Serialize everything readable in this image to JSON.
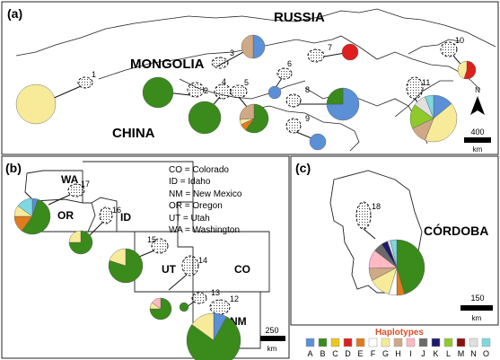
{
  "panels": {
    "a": {
      "label": "(a)",
      "region_labels": [
        "RUSSIA",
        "MONGOLIA",
        "CHINA"
      ],
      "scale": {
        "value": "400",
        "unit": "km"
      },
      "north": "N",
      "sites": [
        {
          "id": "1",
          "pie": [
            0,
            0,
            0,
            0,
            0,
            0,
            1,
            0,
            0,
            0,
            0,
            0,
            0,
            0,
            0
          ]
        },
        {
          "id": "2",
          "pie": [
            0,
            1,
            0,
            0,
            0,
            0,
            0,
            0,
            0,
            0,
            0,
            0,
            0,
            0,
            0
          ]
        },
        {
          "id": "3",
          "pie": [
            0.5,
            0,
            0,
            0,
            0,
            0,
            0,
            0.5,
            0,
            0,
            0,
            0,
            0,
            0,
            0
          ]
        },
        {
          "id": "4",
          "pie": [
            0,
            1,
            0,
            0,
            0,
            0,
            0,
            0,
            0,
            0,
            0,
            0,
            0,
            0,
            0
          ]
        },
        {
          "id": "5",
          "pie": [
            0,
            0.6,
            0,
            0,
            0.08,
            0,
            0.06,
            0.26,
            0,
            0,
            0,
            0,
            0,
            0,
            0
          ]
        },
        {
          "id": "6",
          "pie": [
            1,
            0,
            0,
            0,
            0,
            0,
            0,
            0,
            0,
            0,
            0,
            0,
            0,
            0,
            0
          ]
        },
        {
          "id": "7",
          "pie": [
            0,
            0,
            0,
            1,
            0,
            0,
            0,
            0,
            0,
            0,
            0,
            0,
            0,
            0,
            0
          ]
        },
        {
          "id": "8",
          "pie": [
            0.75,
            0.25,
            0,
            0,
            0,
            0,
            0,
            0,
            0,
            0,
            0,
            0,
            0,
            0,
            0
          ]
        },
        {
          "id": "9",
          "pie": [
            1,
            0,
            0,
            0,
            0,
            0,
            0,
            0,
            0,
            0,
            0,
            0,
            0,
            0,
            0
          ]
        },
        {
          "id": "10",
          "pie": [
            0,
            0,
            0,
            0.55,
            0,
            0,
            0.45,
            0,
            0,
            0,
            0,
            0,
            0,
            0,
            0
          ]
        },
        {
          "id": "11",
          "pie": [
            0.14,
            0,
            0,
            0,
            0,
            0,
            0.42,
            0.12,
            0,
            0,
            0,
            0.17,
            0,
            0.09,
            0.06
          ]
        }
      ]
    },
    "b": {
      "label": "(b)",
      "state_labels": [
        "WA",
        "OR",
        "ID",
        "UT",
        "CO",
        "NM"
      ],
      "legend": [
        "CO = Colorado",
        "ID = Idaho",
        "NM = New Mexico",
        "OR = Oregon",
        "UT = Utah",
        "WA = Washington"
      ],
      "scale": {
        "value": "250",
        "unit": "km"
      },
      "sites": [
        {
          "id": "17",
          "pie": [
            0.05,
            0.55,
            0,
            0,
            0.15,
            0,
            0.1,
            0,
            0,
            0,
            0,
            0,
            0,
            0,
            0.15
          ]
        },
        {
          "id": "16",
          "pie": [
            0,
            0.75,
            0,
            0,
            0,
            0,
            0.25,
            0,
            0,
            0,
            0,
            0,
            0,
            0,
            0
          ]
        },
        {
          "id": "15",
          "pie": [
            0,
            0.8,
            0,
            0,
            0,
            0,
            0.2,
            0,
            0,
            0,
            0,
            0,
            0,
            0,
            0
          ]
        },
        {
          "id": "14",
          "pie": [
            0,
            1,
            0,
            0,
            0,
            0,
            0,
            0,
            0,
            0,
            0,
            0,
            0,
            0,
            0
          ]
        },
        {
          "id": "13",
          "pie": [
            0,
            0.75,
            0,
            0,
            0,
            0,
            0.1,
            0,
            0.15,
            0,
            0,
            0,
            0,
            0,
            0
          ]
        },
        {
          "id": "12",
          "pie": [
            0.08,
            0.77,
            0,
            0,
            0,
            0,
            0.15,
            0,
            0,
            0,
            0,
            0,
            0,
            0,
            0
          ]
        }
      ]
    },
    "c": {
      "label": "(c)",
      "region_label": "CÓRDOBA",
      "scale": {
        "value": "150",
        "unit": "km"
      },
      "sites": [
        {
          "id": "18",
          "pie": [
            0,
            0.5,
            0,
            0,
            0.05,
            0.05,
            0.14,
            0.08,
            0.12,
            0.06,
            0.04,
            0,
            0,
            0.02,
            0.04
          ]
        }
      ]
    }
  },
  "haplotypes": {
    "title": "Haplotypes",
    "letters": [
      "A",
      "B",
      "C",
      "D",
      "E",
      "F",
      "G",
      "H",
      "I",
      "J",
      "K",
      "L",
      "M",
      "N",
      "O"
    ],
    "colors": [
      "#5b8fd6",
      "#3a8a1c",
      "#e9c81c",
      "#dd1f1f",
      "#e07b1e",
      "#ffffff",
      "#f7eb9a",
      "#cfa986",
      "#ffb9c3",
      "#6a6a6a",
      "#1d1a6e",
      "#8fc92a",
      "#8a0e0e",
      "#e0e0e0",
      "#7ed8e0"
    ]
  }
}
